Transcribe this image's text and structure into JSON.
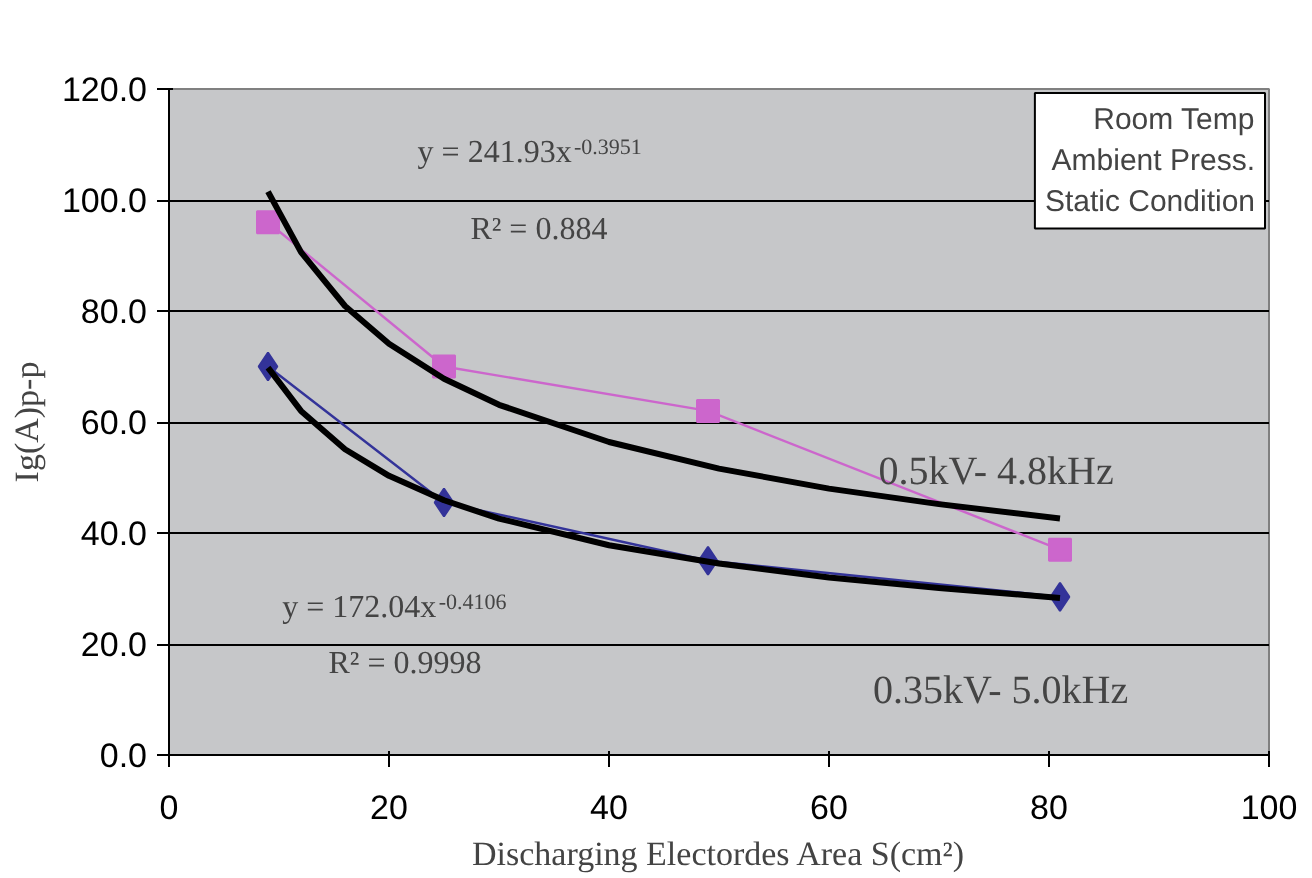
{
  "chart_data": {
    "type": "line",
    "xlabel": "Discharging Electordes Area S(cm²)",
    "ylabel": "Ig(A)p-p",
    "xlim": [
      0,
      100
    ],
    "xticks": [
      0,
      20,
      40,
      60,
      80,
      100
    ],
    "ylim": [
      0,
      120
    ],
    "yticks": [
      {
        "value": 0,
        "label": "0.0"
      },
      {
        "value": 20,
        "label": "20.0"
      },
      {
        "value": 40,
        "label": "40.0"
      },
      {
        "value": 60,
        "label": "60.0"
      },
      {
        "value": 80,
        "label": "80.0"
      },
      {
        "value": 100,
        "label": "100.0"
      },
      {
        "value": 120,
        "label": "120.0"
      }
    ],
    "grid": "y",
    "line_style": "solid",
    "series": [
      {
        "name": "0.5kV- 4.8kHz",
        "marker": "square",
        "color": "#cc66cc",
        "x": [
          9,
          25,
          49,
          81
        ],
        "values": [
          96,
          70,
          62,
          37
        ]
      },
      {
        "name": "0.35kV- 5.0kHz",
        "marker": "diamond",
        "color": "#333399",
        "x": [
          9,
          25,
          49,
          81
        ],
        "values": [
          70,
          45.5,
          35,
          28.5
        ]
      },
      {
        "marker": "none",
        "color": "#000000",
        "x": [
          9,
          12,
          16,
          20,
          25,
          30,
          40,
          50,
          60,
          70,
          81
        ],
        "values": [
          101.5,
          90.6,
          80.9,
          74.1,
          67.8,
          63.1,
          56.4,
          51.6,
          48.0,
          45.2,
          42.6
        ]
      },
      {
        "marker": "none",
        "color": "#000000",
        "x": [
          9,
          12,
          16,
          20,
          25,
          30,
          40,
          50,
          60,
          70,
          81
        ],
        "values": [
          69.8,
          62.0,
          55.1,
          50.3,
          45.9,
          42.6,
          37.8,
          34.5,
          32.0,
          30.1,
          28.3
        ]
      }
    ],
    "annotations": [
      "y = 241.93x$^{-0.3951}$",
      "R² = 0.884",
      "y = 172.04x$^{-0.4106}$",
      "R² = 0.9998",
      "Room Temp\nAmbient Press.\nStatic Condition"
    ]
  }
}
